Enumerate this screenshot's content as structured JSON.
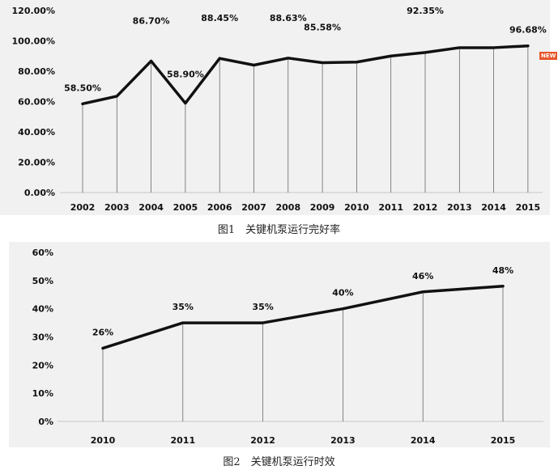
{
  "chart_data": [
    {
      "type": "line",
      "title": "",
      "xlabel": "",
      "ylabel": "",
      "caption": "图1　关键机泵运行完好率",
      "badge": "NEW",
      "categories": [
        "2002",
        "2003",
        "2004",
        "2005",
        "2006",
        "2007",
        "2008",
        "2009",
        "2010",
        "2011",
        "2012",
        "2013",
        "2014",
        "2015"
      ],
      "values": [
        58.5,
        63.5,
        86.7,
        58.9,
        88.45,
        84.0,
        88.63,
        85.58,
        86.0,
        90.0,
        92.35,
        95.5,
        95.5,
        96.68
      ],
      "labels": [
        "58.50%",
        "",
        "86.70%",
        "58.90%",
        "88.45%",
        "",
        "88.63%",
        "85.58%",
        "",
        "",
        "92.35%",
        "",
        "",
        "96.68%"
      ],
      "ylim": [
        0,
        120
      ],
      "yticks": [
        "0.00%",
        "20.00%",
        "40.00%",
        "60.00%",
        "80.00%",
        "100.00%",
        "120.00%"
      ],
      "line_color": "#111111",
      "drop_line_color": "#555555",
      "grid": false
    },
    {
      "type": "line",
      "title": "",
      "xlabel": "",
      "ylabel": "",
      "caption": "图2　关键机泵运行时效",
      "categories": [
        "2010",
        "2011",
        "2012",
        "2013",
        "2014",
        "2015"
      ],
      "values": [
        26,
        35,
        35,
        40,
        46,
        48
      ],
      "labels": [
        "26%",
        "35%",
        "35%",
        "40%",
        "46%",
        "48%"
      ],
      "ylim": [
        0,
        60
      ],
      "yticks": [
        "0%",
        "10%",
        "20%",
        "30%",
        "40%",
        "50%",
        "60%"
      ],
      "line_color": "#111111",
      "drop_line_color": "#555555",
      "grid": false
    }
  ]
}
